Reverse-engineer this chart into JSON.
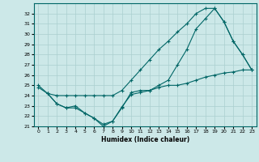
{
  "line1_x": [
    0,
    1,
    2,
    3,
    4,
    5,
    6,
    7,
    8,
    9,
    10,
    11,
    12,
    13,
    14,
    15,
    16,
    17,
    18,
    19,
    20,
    21,
    22,
    23
  ],
  "line1_y": [
    25.0,
    24.2,
    24.0,
    24.0,
    24.0,
    24.0,
    24.0,
    24.0,
    24.0,
    24.5,
    25.5,
    26.5,
    27.5,
    28.5,
    29.3,
    30.2,
    31.0,
    32.0,
    32.5,
    32.5,
    31.2,
    29.3,
    28.0,
    26.5
  ],
  "line2_x": [
    1,
    2,
    3,
    4,
    5,
    6,
    7,
    8,
    9,
    10,
    11,
    12,
    13,
    14,
    15,
    16,
    17,
    18,
    19,
    20,
    21,
    22,
    23
  ],
  "line2_y": [
    24.2,
    23.2,
    22.8,
    23.0,
    22.3,
    21.8,
    21.0,
    21.5,
    22.8,
    24.3,
    24.5,
    24.5,
    25.0,
    25.5,
    27.0,
    28.5,
    30.5,
    31.5,
    32.5,
    31.2,
    29.3,
    28.0,
    26.5
  ],
  "line3_x": [
    0,
    1,
    2,
    3,
    4,
    5,
    6,
    7,
    8,
    9,
    10,
    11,
    12,
    13,
    14,
    15,
    16,
    17,
    18,
    19,
    20,
    21,
    22,
    23
  ],
  "line3_y": [
    24.8,
    24.2,
    23.2,
    22.8,
    22.8,
    22.3,
    21.8,
    21.2,
    21.5,
    22.9,
    24.1,
    24.3,
    24.5,
    24.8,
    25.0,
    25.0,
    25.2,
    25.5,
    25.8,
    26.0,
    26.2,
    26.3,
    26.5,
    26.5
  ],
  "line_color": "#006666",
  "bg_color": "#cce8e8",
  "grid_color": "#aacfcf",
  "xlabel": "Humidex (Indice chaleur)",
  "ylim": [
    21,
    33
  ],
  "xlim": [
    -0.5,
    23.5
  ],
  "yticks": [
    21,
    22,
    23,
    24,
    25,
    26,
    27,
    28,
    29,
    30,
    31,
    32
  ],
  "xticks": [
    0,
    1,
    2,
    3,
    4,
    5,
    6,
    7,
    8,
    9,
    10,
    11,
    12,
    13,
    14,
    15,
    16,
    17,
    18,
    19,
    20,
    21,
    22,
    23
  ]
}
